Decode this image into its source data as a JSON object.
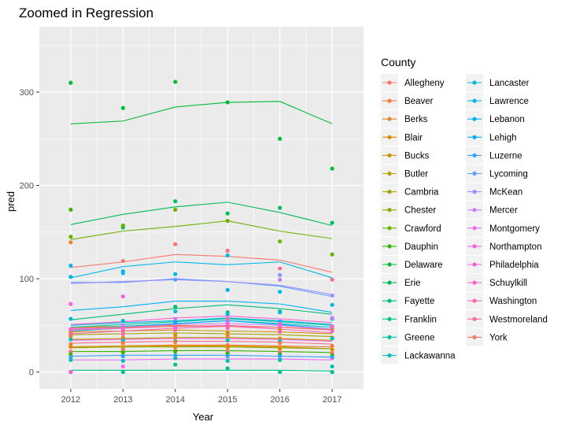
{
  "chart_data": {
    "type": "scatter",
    "title": "Zoomed in Regression",
    "xlabel": "Year",
    "ylabel": "pred",
    "xlim": [
      2011.4,
      2017.6
    ],
    "ylim": [
      -18,
      370
    ],
    "x_ticks": [
      2012,
      2013,
      2014,
      2015,
      2016,
      2017
    ],
    "y_ticks": [
      0,
      100,
      200,
      300
    ],
    "grid": true,
    "legend": {
      "title": "County",
      "placement": "right",
      "columns": 2
    },
    "series": [
      {
        "name": "Allegheny",
        "color": "#F8766D",
        "values": [
          112,
          118,
          126,
          124,
          120,
          107
        ]
      },
      {
        "name": "Beaver",
        "color": "#F17F3F",
        "values": [
          27,
          28,
          29,
          29,
          28,
          27
        ]
      },
      {
        "name": "Berks",
        "color": "#E88526",
        "values": [
          48,
          49,
          50,
          49,
          48,
          46
        ]
      },
      {
        "name": "Blair",
        "color": "#DE8C00",
        "values": [
          27,
          28,
          28,
          28,
          27,
          25
        ]
      },
      {
        "name": "Bucks",
        "color": "#CC9600",
        "values": [
          43,
          44,
          45,
          44,
          43,
          41
        ]
      },
      {
        "name": "Butler",
        "color": "#B79F00",
        "values": [
          35,
          36,
          37,
          37,
          36,
          34
        ]
      },
      {
        "name": "Cambria",
        "color": "#A3A500",
        "values": [
          40,
          41,
          42,
          41,
          40,
          38
        ]
      },
      {
        "name": "Chester",
        "color": "#8BAB00",
        "values": [
          26,
          27,
          27,
          27,
          26,
          25
        ]
      },
      {
        "name": "Crawford",
        "color": "#6BB100",
        "values": [
          142,
          151,
          156,
          162,
          151,
          143
        ]
      },
      {
        "name": "Dauphin",
        "color": "#39B600",
        "values": [
          22,
          22,
          23,
          23,
          22,
          21
        ]
      },
      {
        "name": "Delaware",
        "color": "#00BA38",
        "values": [
          266,
          269,
          284,
          289,
          290,
          266
        ]
      },
      {
        "name": "Erie",
        "color": "#00BC59",
        "values": [
          158,
          169,
          177,
          182,
          171,
          157
        ]
      },
      {
        "name": "Fayette",
        "color": "#00BE70",
        "values": [
          56,
          62,
          68,
          72,
          68,
          62
        ]
      },
      {
        "name": "Franklin",
        "color": "#00C08B",
        "values": [
          2,
          2,
          2,
          2,
          2,
          1
        ]
      },
      {
        "name": "Greene",
        "color": "#00C1A9",
        "values": [
          48,
          51,
          54,
          57,
          54,
          50
        ]
      },
      {
        "name": "Lackawanna",
        "color": "#00BFC4",
        "values": [
          46,
          49,
          52,
          55,
          52,
          48
        ]
      },
      {
        "name": "Lancaster",
        "color": "#00BCD8",
        "values": [
          50,
          53,
          55,
          58,
          55,
          51
        ]
      },
      {
        "name": "Lawrence",
        "color": "#00B8E7",
        "values": [
          101,
          113,
          118,
          115,
          118,
          101
        ]
      },
      {
        "name": "Lebanon",
        "color": "#00B0F6",
        "values": [
          66,
          70,
          76,
          76,
          73,
          64
        ]
      },
      {
        "name": "Lehigh",
        "color": "#00A9FF",
        "values": [
          44,
          47,
          52,
          55,
          51,
          46
        ]
      },
      {
        "name": "Luzerne",
        "color": "#35A2FF",
        "values": [
          17,
          18,
          18,
          18,
          17,
          16
        ]
      },
      {
        "name": "Lycoming",
        "color": "#619CFF",
        "values": [
          96,
          96,
          100,
          97,
          92,
          81
        ]
      },
      {
        "name": "McKean",
        "color": "#9590FF",
        "values": [
          95,
          97,
          99,
          97,
          93,
          83
        ]
      },
      {
        "name": "Mercer",
        "color": "#C77CFF",
        "values": [
          46,
          48,
          51,
          52,
          50,
          46
        ]
      },
      {
        "name": "Montgomery",
        "color": "#E76BF3",
        "values": [
          13,
          13,
          14,
          14,
          14,
          13
        ]
      },
      {
        "name": "Northampton",
        "color": "#F563E3",
        "values": [
          34,
          35,
          36,
          36,
          35,
          33
        ]
      },
      {
        "name": "Philadelphia",
        "color": "#FA62D1",
        "values": [
          51,
          54,
          58,
          60,
          57,
          53
        ]
      },
      {
        "name": "Schuylkill",
        "color": "#FF61C3",
        "values": [
          41,
          44,
          47,
          49,
          46,
          42
        ]
      },
      {
        "name": "Washington",
        "color": "#FF65AE",
        "values": [
          45,
          47,
          49,
          50,
          48,
          45
        ]
      },
      {
        "name": "Westmoreland",
        "color": "#FF6C91",
        "values": [
          31,
          32,
          33,
          33,
          32,
          30
        ]
      },
      {
        "name": "York",
        "color": "#F8766D",
        "values": [
          47,
          48,
          49,
          49,
          48,
          45
        ]
      }
    ],
    "points": [
      {
        "series": 10,
        "x": 2012,
        "y": 310
      },
      {
        "series": 10,
        "x": 2013,
        "y": 283
      },
      {
        "series": 10,
        "x": 2014,
        "y": 311
      },
      {
        "series": 10,
        "x": 2015,
        "y": 289
      },
      {
        "series": 10,
        "x": 2016,
        "y": 250
      },
      {
        "series": 10,
        "x": 2017,
        "y": 218
      },
      {
        "series": 9,
        "x": 2012,
        "y": 174
      },
      {
        "series": 11,
        "x": 2013,
        "y": 155
      },
      {
        "series": 11,
        "x": 2014,
        "y": 183
      },
      {
        "series": 11,
        "x": 2015,
        "y": 170
      },
      {
        "series": 11,
        "x": 2016,
        "y": 176
      },
      {
        "series": 11,
        "x": 2017,
        "y": 160
      },
      {
        "series": 8,
        "x": 2012,
        "y": 145
      },
      {
        "series": 8,
        "x": 2013,
        "y": 157
      },
      {
        "series": 8,
        "x": 2014,
        "y": 174
      },
      {
        "series": 8,
        "x": 2015,
        "y": 162
      },
      {
        "series": 8,
        "x": 2016,
        "y": 140
      },
      {
        "series": 8,
        "x": 2017,
        "y": 126
      },
      {
        "series": 2,
        "x": 2012,
        "y": 139
      },
      {
        "series": 0,
        "x": 2013,
        "y": 119
      },
      {
        "series": 0,
        "x": 2014,
        "y": 137
      },
      {
        "series": 29,
        "x": 2015,
        "y": 130
      },
      {
        "series": 29,
        "x": 2016,
        "y": 111
      },
      {
        "series": 29,
        "x": 2017,
        "y": 99
      },
      {
        "series": 17,
        "x": 2012,
        "y": 114
      },
      {
        "series": 17,
        "x": 2013,
        "y": 108
      },
      {
        "series": 17,
        "x": 2014,
        "y": 105
      },
      {
        "series": 17,
        "x": 2015,
        "y": 125
      },
      {
        "series": 17,
        "x": 2016,
        "y": 86
      },
      {
        "series": 17,
        "x": 2017,
        "y": 72
      },
      {
        "series": 17,
        "x": 2012,
        "y": 102
      },
      {
        "series": 17,
        "x": 2013,
        "y": 106
      },
      {
        "series": 21,
        "x": 2014,
        "y": 99
      },
      {
        "series": 18,
        "x": 2015,
        "y": 88
      },
      {
        "series": 22,
        "x": 2016,
        "y": 104
      },
      {
        "series": 22,
        "x": 2017,
        "y": 82
      },
      {
        "series": 25,
        "x": 2012,
        "y": 73
      },
      {
        "series": 25,
        "x": 2013,
        "y": 81
      },
      {
        "series": 23,
        "x": 2016,
        "y": 99
      },
      {
        "series": 12,
        "x": 2014,
        "y": 70
      },
      {
        "series": 12,
        "x": 2015,
        "y": 64
      },
      {
        "series": 12,
        "x": 2016,
        "y": 65
      },
      {
        "series": 13,
        "x": 2012,
        "y": 0
      },
      {
        "series": 13,
        "x": 2013,
        "y": 0
      },
      {
        "series": 13,
        "x": 2014,
        "y": 8
      },
      {
        "series": 13,
        "x": 2015,
        "y": 4
      },
      {
        "series": 13,
        "x": 2016,
        "y": 0
      },
      {
        "series": 13,
        "x": 2017,
        "y": 0
      },
      {
        "series": 14,
        "x": 2014,
        "y": 15
      },
      {
        "series": 14,
        "x": 2015,
        "y": 12
      },
      {
        "series": 14,
        "x": 2016,
        "y": 13
      },
      {
        "series": 14,
        "x": 2017,
        "y": 6
      },
      {
        "series": 14,
        "x": 2013,
        "y": 12
      },
      {
        "series": 14,
        "x": 2012,
        "y": 13
      },
      {
        "series": 26,
        "x": 2012,
        "y": 0
      },
      {
        "series": 24,
        "x": 2013,
        "y": 6
      },
      {
        "series": 24,
        "x": 2017,
        "y": 15
      },
      {
        "series": 16,
        "x": 2012,
        "y": 57
      },
      {
        "series": 16,
        "x": 2013,
        "y": 55
      },
      {
        "series": 16,
        "x": 2014,
        "y": 65
      },
      {
        "series": 16,
        "x": 2015,
        "y": 62
      },
      {
        "series": 16,
        "x": 2016,
        "y": 64
      },
      {
        "series": 16,
        "x": 2017,
        "y": 57
      },
      {
        "series": 19,
        "x": 2014,
        "y": 53
      },
      {
        "series": 19,
        "x": 2015,
        "y": 55
      },
      {
        "series": 19,
        "x": 2016,
        "y": 54
      },
      {
        "series": 23,
        "x": 2013,
        "y": 50
      },
      {
        "series": 23,
        "x": 2014,
        "y": 57
      },
      {
        "series": 23,
        "x": 2015,
        "y": 53
      },
      {
        "series": 23,
        "x": 2016,
        "y": 52
      },
      {
        "series": 23,
        "x": 2017,
        "y": 58
      },
      {
        "series": 23,
        "x": 2012,
        "y": 44
      },
      {
        "series": 28,
        "x": 2014,
        "y": 48
      },
      {
        "series": 28,
        "x": 2015,
        "y": 57
      },
      {
        "series": 28,
        "x": 2016,
        "y": 48
      },
      {
        "series": 4,
        "x": 2012,
        "y": 42
      },
      {
        "series": 4,
        "x": 2013,
        "y": 44
      },
      {
        "series": 4,
        "x": 2014,
        "y": 40
      },
      {
        "series": 4,
        "x": 2015,
        "y": 42
      },
      {
        "series": 4,
        "x": 2016,
        "y": 45
      },
      {
        "series": 4,
        "x": 2017,
        "y": 47
      },
      {
        "series": 27,
        "x": 2012,
        "y": 40
      },
      {
        "series": 27,
        "x": 2013,
        "y": 41
      },
      {
        "series": 27,
        "x": 2014,
        "y": 45
      },
      {
        "series": 27,
        "x": 2015,
        "y": 47
      },
      {
        "series": 27,
        "x": 2016,
        "y": 43
      },
      {
        "series": 27,
        "x": 2017,
        "y": 44
      },
      {
        "series": 2,
        "x": 2012,
        "y": 38
      },
      {
        "series": 2,
        "x": 2013,
        "y": 37
      },
      {
        "series": 2,
        "x": 2014,
        "y": 37
      },
      {
        "series": 2,
        "x": 2015,
        "y": 39
      },
      {
        "series": 2,
        "x": 2016,
        "y": 36
      },
      {
        "series": 2,
        "x": 2017,
        "y": 37
      },
      {
        "series": 15,
        "x": 2012,
        "y": 35
      },
      {
        "series": 15,
        "x": 2013,
        "y": 34
      },
      {
        "series": 15,
        "x": 2014,
        "y": 33
      },
      {
        "series": 15,
        "x": 2015,
        "y": 34
      },
      {
        "series": 15,
        "x": 2016,
        "y": 33
      },
      {
        "series": 15,
        "x": 2017,
        "y": 36
      },
      {
        "series": 1,
        "x": 2012,
        "y": 30
      },
      {
        "series": 1,
        "x": 2013,
        "y": 31
      },
      {
        "series": 1,
        "x": 2014,
        "y": 32
      },
      {
        "series": 1,
        "x": 2015,
        "y": 29
      },
      {
        "series": 1,
        "x": 2016,
        "y": 31
      },
      {
        "series": 1,
        "x": 2017,
        "y": 28
      },
      {
        "series": 3,
        "x": 2012,
        "y": 27
      },
      {
        "series": 3,
        "x": 2013,
        "y": 25
      },
      {
        "series": 3,
        "x": 2014,
        "y": 27
      },
      {
        "series": 3,
        "x": 2015,
        "y": 26
      },
      {
        "series": 3,
        "x": 2016,
        "y": 25
      },
      {
        "series": 3,
        "x": 2017,
        "y": 24
      },
      {
        "series": 29,
        "x": 2012,
        "y": 22
      },
      {
        "series": 29,
        "x": 2013,
        "y": 24
      },
      {
        "series": 29,
        "x": 2014,
        "y": 23
      },
      {
        "series": 29,
        "x": 2015,
        "y": 22
      },
      {
        "series": 29,
        "x": 2016,
        "y": 21
      },
      {
        "series": 29,
        "x": 2017,
        "y": 20
      },
      {
        "series": 9,
        "x": 2012,
        "y": 19
      },
      {
        "series": 9,
        "x": 2013,
        "y": 21
      },
      {
        "series": 9,
        "x": 2014,
        "y": 22
      },
      {
        "series": 9,
        "x": 2015,
        "y": 20
      },
      {
        "series": 9,
        "x": 2016,
        "y": 19
      },
      {
        "series": 9,
        "x": 2017,
        "y": 18
      },
      {
        "series": 20,
        "x": 2012,
        "y": 16
      },
      {
        "series": 20,
        "x": 2013,
        "y": 17
      },
      {
        "series": 20,
        "x": 2014,
        "y": 18
      },
      {
        "series": 20,
        "x": 2015,
        "y": 17
      },
      {
        "series": 20,
        "x": 2016,
        "y": 17
      },
      {
        "series": 20,
        "x": 2017,
        "y": 16
      },
      {
        "series": 26,
        "x": 2013,
        "y": 46
      },
      {
        "series": 26,
        "x": 2014,
        "y": 47
      },
      {
        "series": 26,
        "x": 2015,
        "y": 51
      },
      {
        "series": 26,
        "x": 2016,
        "y": 51
      },
      {
        "series": 26,
        "x": 2017,
        "y": 49
      },
      {
        "series": 26,
        "x": 2012,
        "y": 46
      }
    ]
  },
  "legend_items": [
    "Allegheny",
    "Beaver",
    "Berks",
    "Blair",
    "Bucks",
    "Butler",
    "Cambria",
    "Chester",
    "Crawford",
    "Dauphin",
    "Delaware",
    "Erie",
    "Fayette",
    "Franklin",
    "Greene",
    "Lackawanna",
    "Lancaster",
    "Lawrence",
    "Lebanon",
    "Lehigh",
    "Luzerne",
    "Lycoming",
    "McKean",
    "Mercer",
    "Montgomery",
    "Northampton",
    "Philadelphia",
    "Schuylkill",
    "Washington",
    "Westmoreland",
    "York"
  ],
  "colors": {
    "panel_bg": "#EBEBEB",
    "grid_major": "#FFFFFF",
    "tick_text": "#4D4D4D"
  }
}
